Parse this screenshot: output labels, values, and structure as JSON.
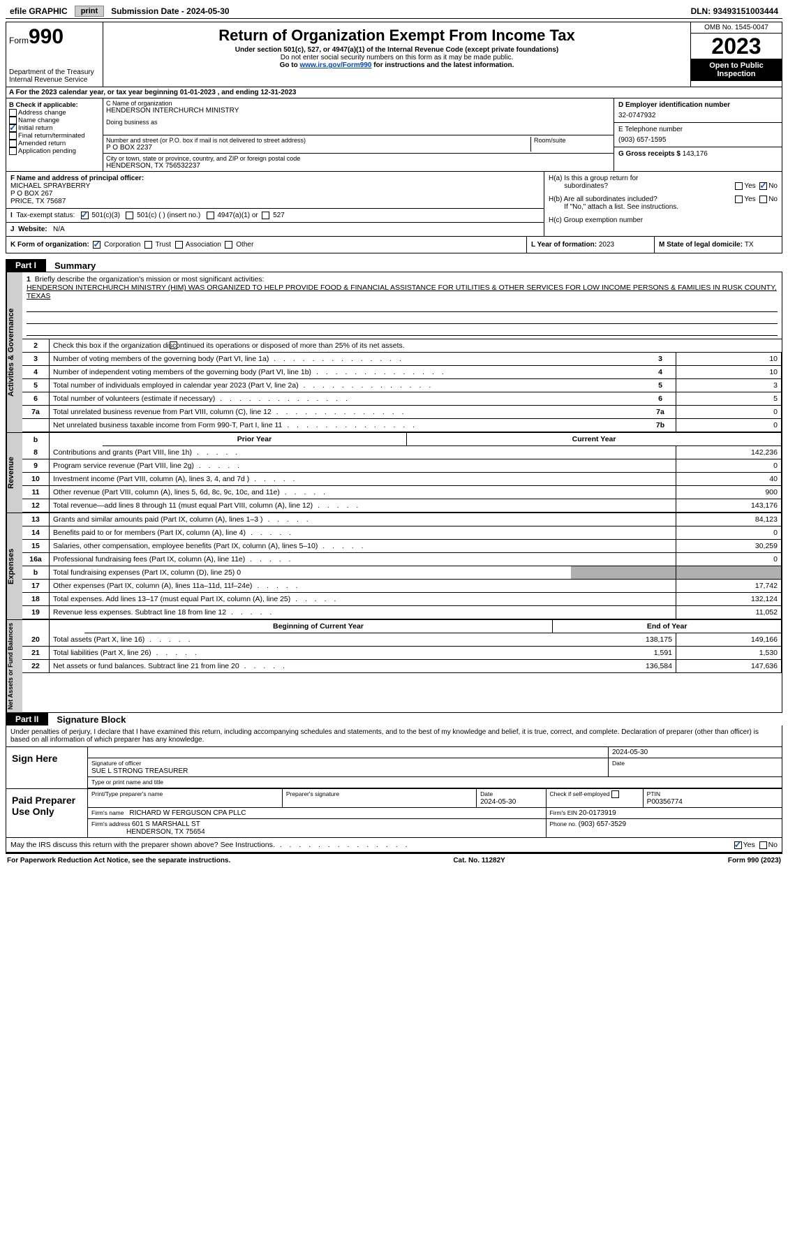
{
  "topbar": {
    "efile": "efile GRAPHIC",
    "print": "print",
    "sub_label": "Submission Date - ",
    "sub_date": "2024-05-30",
    "dln_label": "DLN: ",
    "dln": "93493151003444"
  },
  "header": {
    "form_word": "Form",
    "form_num": "990",
    "dept": "Department of the Treasury",
    "irs": "Internal Revenue Service",
    "title": "Return of Organization Exempt From Income Tax",
    "sub1": "Under section 501(c), 527, or 4947(a)(1) of the Internal Revenue Code (except private foundations)",
    "sub2": "Do not enter social security numbers on this form as it may be made public.",
    "sub3a": "Go to ",
    "sub3_link": "www.irs.gov/Form990",
    "sub3b": " for instructions and the latest information.",
    "omb": "OMB No. 1545-0047",
    "year": "2023",
    "inspect": "Open to Public Inspection"
  },
  "row_a": "A For the 2023 calendar year, or tax year beginning 01-01-2023   , and ending 12-31-2023",
  "b": {
    "title": "B Check if applicable:",
    "addr": "Address change",
    "name": "Name change",
    "init": "Initial return",
    "final": "Final return/terminated",
    "amend": "Amended return",
    "app": "Application pending"
  },
  "c": {
    "name_label": "C Name of organization",
    "name": "HENDERSON INTERCHURCH MINISTRY",
    "dba_label": "Doing business as",
    "street_label": "Number and street (or P.O. box if mail is not delivered to street address)",
    "room_label": "Room/suite",
    "street": "P O BOX 2237",
    "city_label": "City or town, state or province, country, and ZIP or foreign postal code",
    "city": "HENDERSON, TX  756532237"
  },
  "d": {
    "label": "D Employer identification number",
    "val": "32-0747932"
  },
  "e": {
    "label": "E Telephone number",
    "val": "(903) 657-1595"
  },
  "g": {
    "label": "G Gross receipts $ ",
    "val": "143,176"
  },
  "f": {
    "label": "F Name and address of principal officer:",
    "l1": "MICHAEL SPRAYBERRY",
    "l2": "P O BOX 267",
    "l3": "PRICE, TX  75687"
  },
  "h": {
    "a": "H(a)  Is this a group return for",
    "a2": "subordinates?",
    "b": "H(b)  Are all subordinates included?",
    "b2": "If \"No,\" attach a list. See instructions.",
    "c": "H(c)  Group exemption number ",
    "yes": "Yes",
    "no": "No"
  },
  "i": {
    "label": "Tax-exempt status:",
    "o1": "501(c)(3)",
    "o2": "501(c) (  ) (insert no.)",
    "o3": "4947(a)(1) or",
    "o4": "527"
  },
  "j": {
    "label": "Website: ",
    "val": "N/A"
  },
  "k": {
    "label": "K Form of organization:",
    "corp": "Corporation",
    "trust": "Trust",
    "assoc": "Association",
    "other": "Other"
  },
  "l": {
    "label": "L Year of formation: ",
    "val": "2023"
  },
  "m": {
    "label": "M State of legal domicile: ",
    "val": "TX"
  },
  "part1": {
    "tab": "Part I",
    "title": "Summary"
  },
  "mission": {
    "num": "1",
    "label": "Briefly describe the organization's mission or most significant activities:",
    "text": "HENDERSON INTERCHURCH MINISTRY (HIM) WAS ORGANIZED TO HELP PROVIDE FOOD & FINANCIAL ASSISTANCE FOR UTILITIES & OTHER SERVICES FOR LOW INCOME PERSONS & FAMILIES IN RUSK COUNTY, TEXAS"
  },
  "line2": "Check this box      if the organization discontinued its operations or disposed of more than 25% of its net assets.",
  "gov_label": "Activities & Governance",
  "rev_label": "Revenue",
  "exp_label": "Expenses",
  "net_label": "Net Assets or Fund Balances",
  "gov_rows": [
    {
      "n": "3",
      "t": "Number of voting members of the governing body (Part VI, line 1a)",
      "c": "3",
      "v": "10"
    },
    {
      "n": "4",
      "t": "Number of independent voting members of the governing body (Part VI, line 1b)",
      "c": "4",
      "v": "10"
    },
    {
      "n": "5",
      "t": "Total number of individuals employed in calendar year 2023 (Part V, line 2a)",
      "c": "5",
      "v": "3"
    },
    {
      "n": "6",
      "t": "Total number of volunteers (estimate if necessary)",
      "c": "6",
      "v": "5"
    },
    {
      "n": "7a",
      "t": "Total unrelated business revenue from Part VIII, column (C), line 12",
      "c": "7a",
      "v": "0"
    },
    {
      "n": "",
      "t": "Net unrelated business taxable income from Form 990-T, Part I, line 11",
      "c": "7b",
      "v": "0"
    }
  ],
  "py": "Prior Year",
  "cy": "Current Year",
  "bcy": "Beginning of Current Year",
  "eoy": "End of Year",
  "rev_rows": [
    {
      "n": "8",
      "t": "Contributions and grants (Part VIII, line 1h)",
      "p": "",
      "c": "142,236"
    },
    {
      "n": "9",
      "t": "Program service revenue (Part VIII, line 2g)",
      "p": "",
      "c": "0"
    },
    {
      "n": "10",
      "t": "Investment income (Part VIII, column (A), lines 3, 4, and 7d )",
      "p": "",
      "c": "40"
    },
    {
      "n": "11",
      "t": "Other revenue (Part VIII, column (A), lines 5, 6d, 8c, 9c, 10c, and 11e)",
      "p": "",
      "c": "900"
    },
    {
      "n": "12",
      "t": "Total revenue—add lines 8 through 11 (must equal Part VIII, column (A), line 12)",
      "p": "",
      "c": "143,176"
    }
  ],
  "exp_rows": [
    {
      "n": "13",
      "t": "Grants and similar amounts paid (Part IX, column (A), lines 1–3 )",
      "p": "",
      "c": "84,123"
    },
    {
      "n": "14",
      "t": "Benefits paid to or for members (Part IX, column (A), line 4)",
      "p": "",
      "c": "0"
    },
    {
      "n": "15",
      "t": "Salaries, other compensation, employee benefits (Part IX, column (A), lines 5–10)",
      "p": "",
      "c": "30,259"
    },
    {
      "n": "16a",
      "t": "Professional fundraising fees (Part IX, column (A), line 11e)",
      "p": "",
      "c": "0"
    },
    {
      "n": "b",
      "t": "Total fundraising expenses (Part IX, column (D), line 25) 0",
      "p": "grey",
      "c": "grey"
    },
    {
      "n": "17",
      "t": "Other expenses (Part IX, column (A), lines 11a–11d, 11f–24e)",
      "p": "",
      "c": "17,742"
    },
    {
      "n": "18",
      "t": "Total expenses. Add lines 13–17 (must equal Part IX, column (A), line 25)",
      "p": "",
      "c": "132,124"
    },
    {
      "n": "19",
      "t": "Revenue less expenses. Subtract line 18 from line 12",
      "p": "",
      "c": "11,052"
    }
  ],
  "net_rows": [
    {
      "n": "20",
      "t": "Total assets (Part X, line 16)",
      "p": "138,175",
      "c": "149,166"
    },
    {
      "n": "21",
      "t": "Total liabilities (Part X, line 26)",
      "p": "1,591",
      "c": "1,530"
    },
    {
      "n": "22",
      "t": "Net assets or fund balances. Subtract line 21 from line 20",
      "p": "136,584",
      "c": "147,636"
    }
  ],
  "part2": {
    "tab": "Part II",
    "title": "Signature Block"
  },
  "penalties": "Under penalties of perjury, I declare that I have examined this return, including accompanying schedules and statements, and to the best of my knowledge and belief, it is true, correct, and complete. Declaration of preparer (other than officer) is based on all information of which preparer has any knowledge.",
  "sign": {
    "here": "Sign Here",
    "sig_label": "Signature of officer",
    "officer": "SUE L STRONG  TREASURER",
    "name_label": "Type or print name and title",
    "date_label": "Date",
    "date": "2024-05-30"
  },
  "prep": {
    "title": "Paid Preparer Use Only",
    "name_label": "Print/Type preparer's name",
    "sig_label": "Preparer's signature",
    "date_label": "Date",
    "date": "2024-05-30",
    "self_label": "Check       if self-employed",
    "ptin_label": "PTIN",
    "ptin": "P00356774",
    "firm_label": "Firm's name   ",
    "firm": "RICHARD W FERGUSON CPA PLLC",
    "ein_label": "Firm's EIN  ",
    "ein": "20-0173919",
    "addr_label": "Firm's address ",
    "addr1": "601 S MARSHALL ST",
    "addr2": "HENDERSON, TX  75654",
    "phone_label": "Phone no. ",
    "phone": "(903) 657-3529"
  },
  "discuss": "May the IRS discuss this return with the preparer shown above? See Instructions.",
  "footer": {
    "l": "For Paperwork Reduction Act Notice, see the separate instructions.",
    "m": "Cat. No. 11282Y",
    "r": "Form 990 (2023)"
  }
}
